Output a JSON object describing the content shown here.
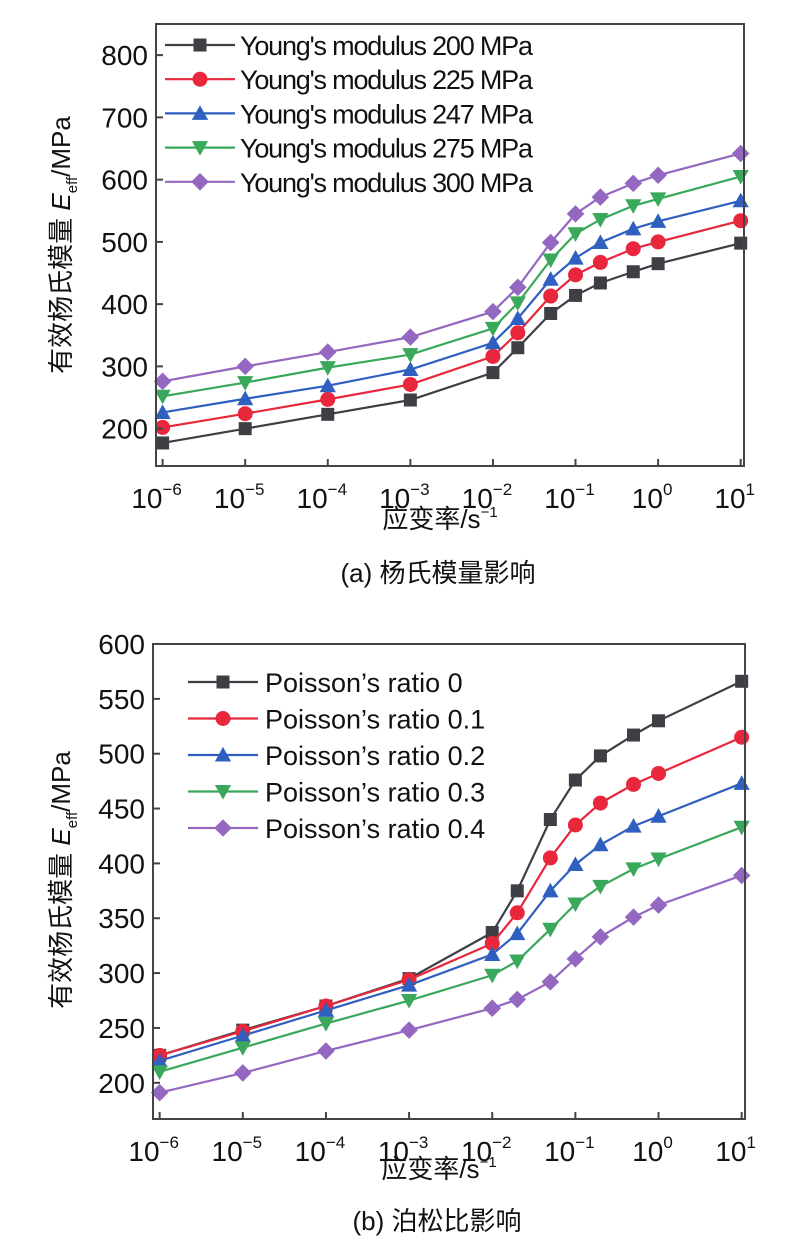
{
  "chart_data": [
    {
      "id": "a",
      "type": "line",
      "caption": "(a) 杨氏模量影响",
      "title": "",
      "xlabel": "应变率/s⁻¹",
      "xlabel_main": "应变率/s",
      "xlabel_sup": "−1",
      "ylabel_cn": "有效杨氏模量",
      "ylabel_sym": "E",
      "ylabel_sub": "eff",
      "ylabel_unit": "/MPa",
      "xscale": "log",
      "xlim_log10": [
        -6.08,
        1.04
      ],
      "ylim": [
        140,
        850
      ],
      "yticks": [
        200,
        300,
        400,
        500,
        600,
        700,
        800
      ],
      "xticks_log10": [
        -6,
        -5,
        -4,
        -3,
        -2,
        -1,
        0,
        1
      ],
      "xtick_labels": [
        [
          "10",
          "−6"
        ],
        [
          "10",
          "−5"
        ],
        [
          "10",
          "−4"
        ],
        [
          "10",
          "−3"
        ],
        [
          "10",
          "−2"
        ],
        [
          "10",
          "−1"
        ],
        [
          "10",
          "0"
        ],
        [
          "10",
          "1"
        ]
      ],
      "grid": false,
      "legend_position": "top-left",
      "x": [
        1e-06,
        1e-05,
        0.0001,
        0.001,
        0.01,
        0.02,
        0.05,
        0.1,
        0.2,
        0.5,
        1,
        10
      ],
      "series": [
        {
          "name": "Young's modulus 200 MPa",
          "color": "#3d3f45",
          "marker": "square",
          "values": [
            177,
            200,
            223,
            246,
            290,
            330,
            385,
            414,
            434,
            452,
            465,
            498
          ]
        },
        {
          "name": "Young's modulus 225 MPa",
          "color": "#e8263c",
          "marker": "circle",
          "values": [
            202,
            224,
            247,
            271,
            316,
            354,
            413,
            447,
            467,
            489,
            500,
            534
          ]
        },
        {
          "name": "Young's modulus 247 MPa",
          "color": "#2f5fbf",
          "marker": "triangle-up",
          "values": [
            226,
            248,
            269,
            295,
            338,
            377,
            440,
            474,
            499,
            521,
            533,
            566
          ]
        },
        {
          "name": "Young's modulus 275 MPa",
          "color": "#3aa85a",
          "marker": "triangle-down",
          "values": [
            252,
            274,
            298,
            319,
            361,
            402,
            471,
            513,
            536,
            558,
            569,
            605
          ]
        },
        {
          "name": "Young's modulus 300 MPa",
          "color": "#9467c0",
          "marker": "diamond",
          "values": [
            276,
            300,
            323,
            347,
            388,
            427,
            499,
            545,
            572,
            594,
            607,
            642
          ]
        }
      ]
    },
    {
      "id": "b",
      "type": "line",
      "caption": "(b) 泊松比影响",
      "title": "",
      "xlabel": "应变率/s⁻¹",
      "xlabel_main": "应变率/s",
      "xlabel_sup": "−1",
      "ylabel_cn": "有效杨氏模量",
      "ylabel_sym": "E",
      "ylabel_sub": "eff",
      "ylabel_unit": "/MPa",
      "xscale": "log",
      "xlim_log10": [
        -6.08,
        1.04
      ],
      "ylim": [
        167,
        600
      ],
      "yticks": [
        200,
        250,
        300,
        350,
        400,
        450,
        500,
        550,
        600
      ],
      "xticks_log10": [
        -6,
        -5,
        -4,
        -3,
        -2,
        -1,
        0,
        1
      ],
      "xtick_labels": [
        [
          "10",
          "−6"
        ],
        [
          "10",
          "−5"
        ],
        [
          "10",
          "−4"
        ],
        [
          "10",
          "−3"
        ],
        [
          "10",
          "−2"
        ],
        [
          "10",
          "−1"
        ],
        [
          "10",
          "0"
        ],
        [
          "10",
          "1"
        ]
      ],
      "grid": false,
      "legend_position": "top-left",
      "x": [
        1e-06,
        1e-05,
        0.0001,
        0.001,
        0.01,
        0.02,
        0.05,
        0.1,
        0.2,
        0.5,
        1,
        10
      ],
      "series": [
        {
          "name": "Poisson’s ratio 0",
          "color": "#3d3f45",
          "marker": "square",
          "values": [
            225,
            248,
            270,
            295,
            337,
            375,
            440,
            476,
            498,
            517,
            530,
            566
          ]
        },
        {
          "name": "Poisson’s ratio 0.1",
          "color": "#e8263c",
          "marker": "circle",
          "values": [
            225,
            247,
            270,
            294,
            327,
            355,
            405,
            435,
            455,
            472,
            482,
            515
          ]
        },
        {
          "name": "Poisson’s ratio 0.2",
          "color": "#2f5fbf",
          "marker": "triangle-up",
          "values": [
            220,
            243,
            266,
            289,
            317,
            336,
            375,
            399,
            417,
            434,
            443,
            473
          ]
        },
        {
          "name": "Poisson’s ratio 0.3",
          "color": "#3aa85a",
          "marker": "triangle-down",
          "values": [
            210,
            232,
            254,
            275,
            298,
            311,
            340,
            363,
            379,
            395,
            404,
            433
          ]
        },
        {
          "name": "Poisson’s ratio 0.4",
          "color": "#9467c0",
          "marker": "diamond",
          "values": [
            191,
            209,
            229,
            248,
            268,
            276,
            292,
            313,
            333,
            351,
            362,
            389
          ]
        }
      ]
    }
  ]
}
